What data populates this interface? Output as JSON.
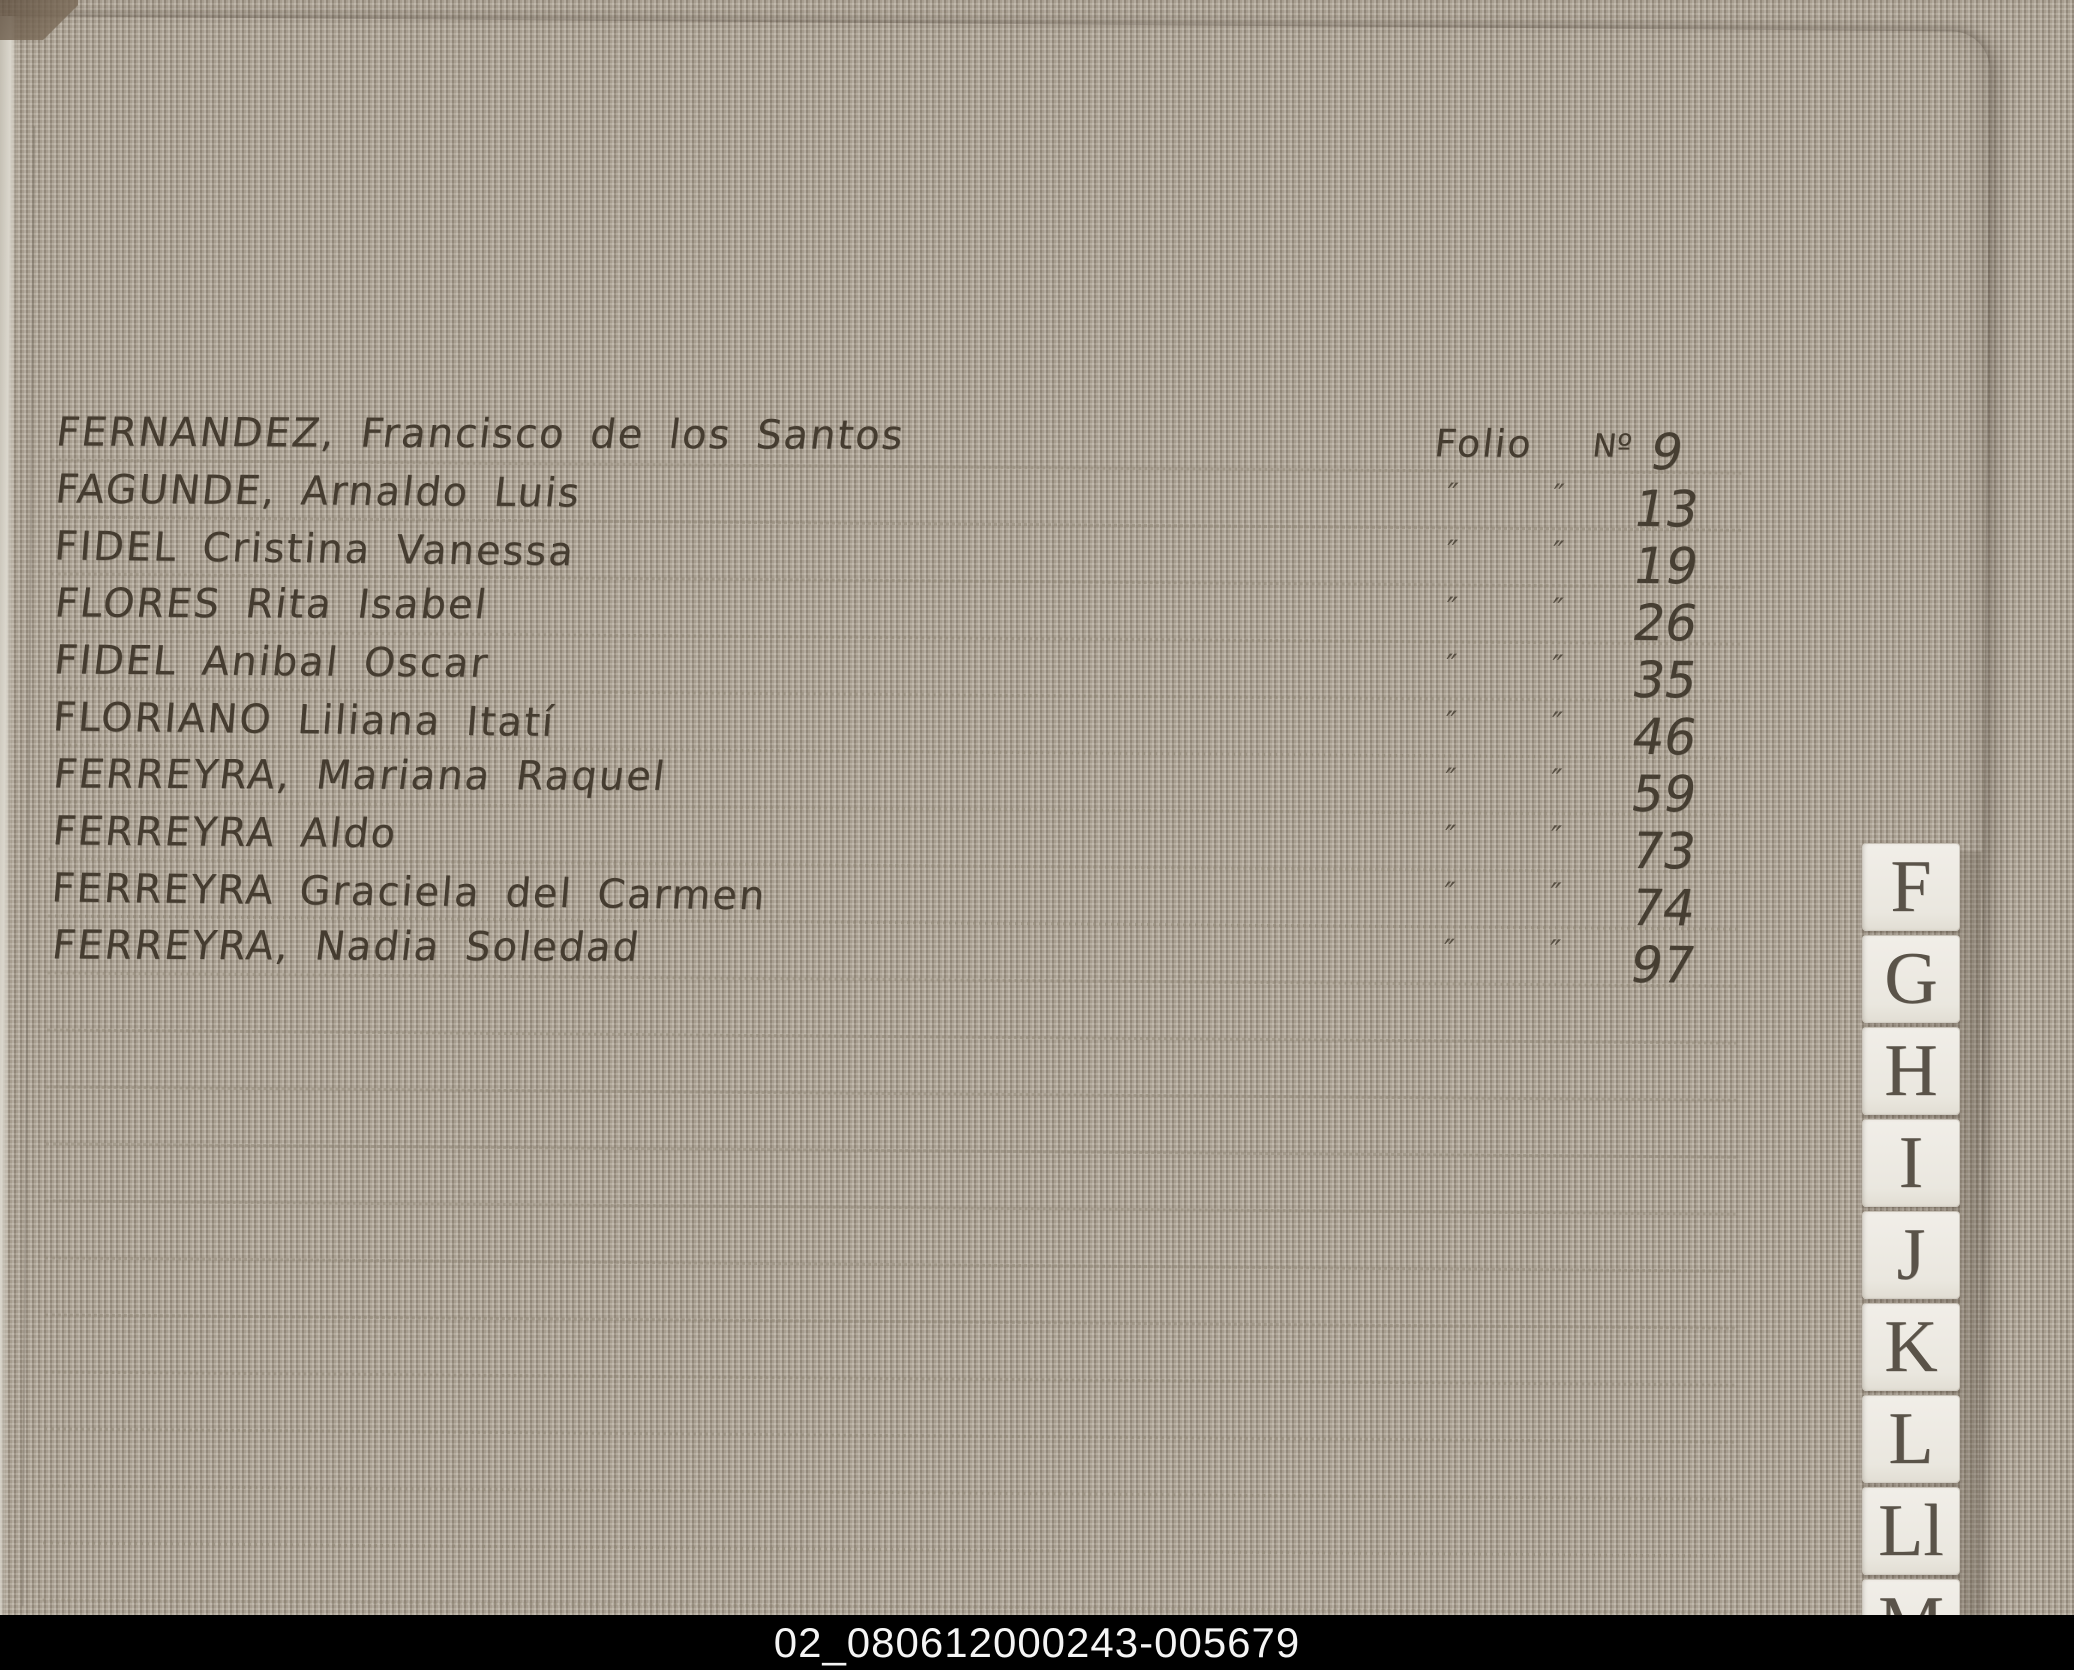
{
  "page": {
    "folio_label": "Folio",
    "numero_label": "Nº",
    "ditto_mark": "″",
    "entries": [
      {
        "name": "FERNANDEZ, Francisco de los Santos",
        "folio": "9"
      },
      {
        "name": "FAGUNDE, Arnaldo Luis",
        "folio": "13"
      },
      {
        "name": "FIDEL Cristina Vanessa",
        "folio": "19"
      },
      {
        "name": "FLORES Rita Isabel",
        "folio": "26"
      },
      {
        "name": "FIDEL Anibal Oscar",
        "folio": "35"
      },
      {
        "name": "FLORIANO Liliana Itatí",
        "folio": "46"
      },
      {
        "name": "FERREYRA, Mariana Raquel",
        "folio": "59"
      },
      {
        "name": "FERREYRA Aldo",
        "folio": "73"
      },
      {
        "name": "FERREYRA Graciela del Carmen",
        "folio": "74"
      },
      {
        "name": "FERREYRA, Nadia Soledad",
        "folio": "97"
      }
    ]
  },
  "tabs": [
    "F",
    "G",
    "H",
    "I",
    "J",
    "K",
    "L",
    "Ll",
    "M"
  ],
  "caption": "02_080612000243-005679",
  "colors": {
    "paper": "#e9e6df",
    "ink": "#453c30",
    "ruled_line": "#928878",
    "fabric": "#a89e90",
    "tab_paper": "#efece5",
    "tab_letter": "#5a5349",
    "caption_background": "#000000",
    "caption_text": "#f5f5f5"
  }
}
